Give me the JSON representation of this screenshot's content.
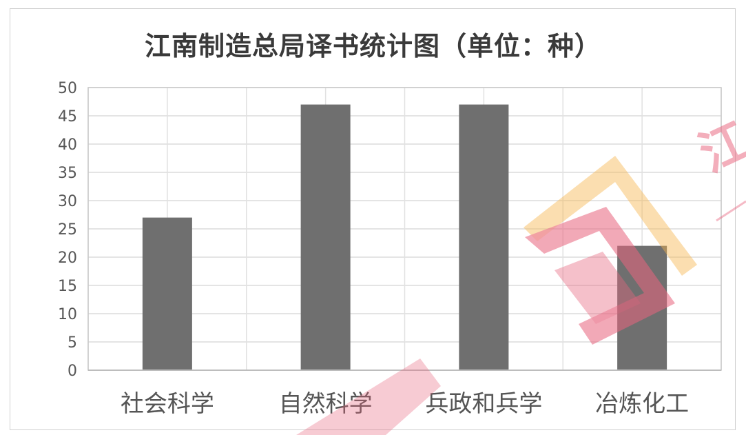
{
  "chart_data": {
    "type": "bar",
    "title": "江南制造总局译书统计图（单位：种）",
    "categories": [
      "社会科学",
      "自然科学",
      "兵政和兵学",
      "冶炼化工"
    ],
    "values": [
      27,
      47,
      47,
      22
    ],
    "ylim": [
      0,
      50
    ],
    "yticks": [
      "0",
      "5",
      "10",
      "15",
      "20",
      "25",
      "30",
      "35",
      "40",
      "45",
      "50"
    ],
    "grid": true,
    "bar_color": "#6f6f6f"
  },
  "watermark": {
    "text": "江",
    "color": "#e8667f",
    "accent_color": "#f5b54f"
  }
}
